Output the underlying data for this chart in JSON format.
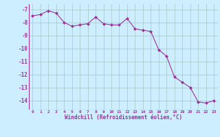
{
  "x": [
    0,
    1,
    2,
    3,
    4,
    5,
    6,
    7,
    8,
    9,
    10,
    11,
    12,
    13,
    14,
    15,
    16,
    17,
    18,
    19,
    20,
    21,
    22,
    23
  ],
  "y": [
    -7.5,
    -7.4,
    -7.1,
    -7.3,
    -8.0,
    -8.3,
    -8.2,
    -8.1,
    -7.6,
    -8.1,
    -8.2,
    -8.2,
    -7.7,
    -8.5,
    -8.6,
    -8.7,
    -10.1,
    -10.6,
    -12.2,
    -12.6,
    -13.0,
    -14.1,
    -14.2,
    -14.0
  ],
  "line_color": "#993399",
  "marker": "D",
  "marker_size": 2,
  "bg_color": "#cceeff",
  "grid_color": "#aacccc",
  "xlabel": "Windchill (Refroidissement éolien,°C)",
  "xlabel_color": "#993399",
  "tick_color": "#993399",
  "yticks": [
    -7,
    -8,
    -9,
    -10,
    -11,
    -12,
    -13,
    -14
  ],
  "ylim": [
    -14.7,
    -6.6
  ],
  "xlim": [
    -0.5,
    23.5
  ],
  "xtick_labels": [
    "0",
    "1",
    "2",
    "3",
    "4",
    "5",
    "6",
    "7",
    "8",
    "9",
    "10",
    "11",
    "12",
    "13",
    "14",
    "15",
    "16",
    "17",
    "18",
    "19",
    "20",
    "21",
    "22",
    "23"
  ]
}
